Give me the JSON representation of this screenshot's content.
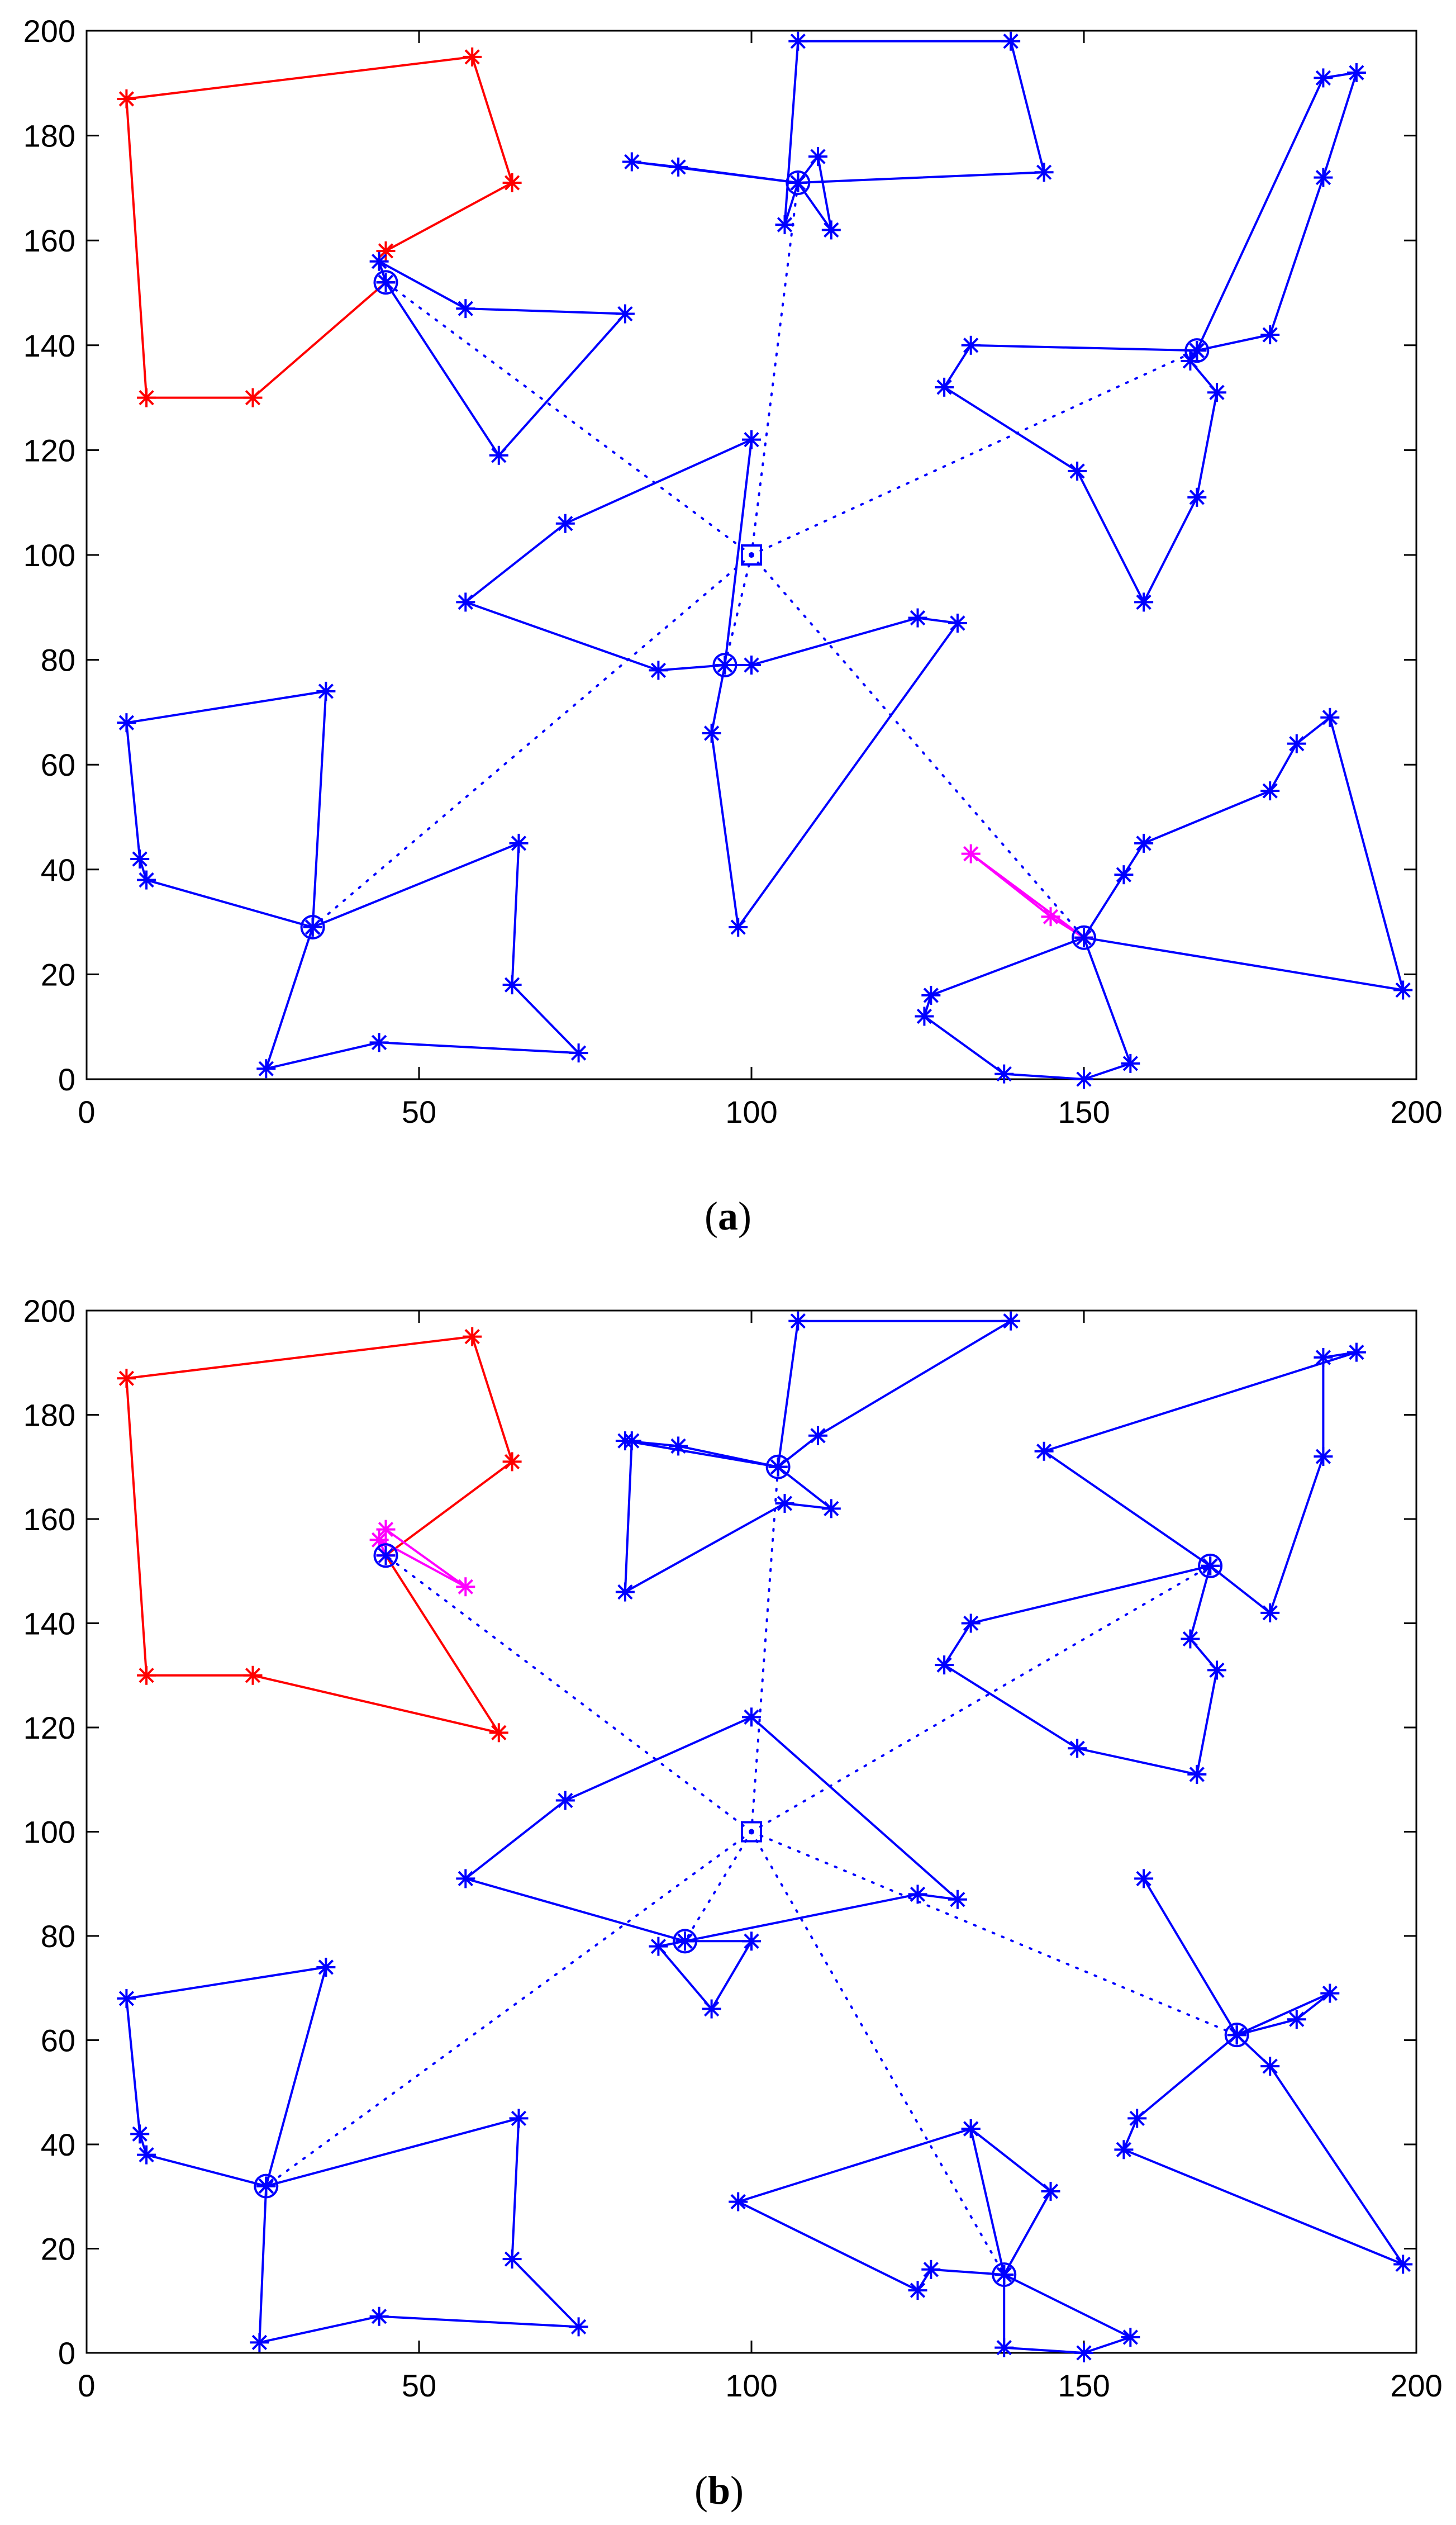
{
  "figure": {
    "panels": [
      {
        "label_open": "(",
        "label_letter": "a",
        "label_close": ")"
      },
      {
        "label_open": "(",
        "label_letter": "b",
        "label_close": ")"
      }
    ]
  },
  "colors": {
    "main_tour": "#0000ff",
    "red_tour": "#ff0000",
    "magenta_tour": "#ff00ff",
    "axes": "#000000",
    "background": "#ffffff"
  },
  "chart_data": [
    {
      "type": "line",
      "panel": "(a)",
      "xlim": [
        0,
        200
      ],
      "ylim": [
        0,
        200
      ],
      "xticks": [
        0,
        50,
        100,
        150,
        200
      ],
      "yticks": [
        0,
        20,
        40,
        60,
        80,
        100,
        120,
        140,
        160,
        180,
        200
      ],
      "xtick_labels": [
        "0",
        "50",
        "100",
        "150",
        "200"
      ],
      "ytick_labels": [
        "0",
        "20",
        "40",
        "60",
        "80",
        "100",
        "120",
        "140",
        "160",
        "180",
        "200"
      ],
      "grid": false,
      "depot": {
        "x": 100,
        "y": 100,
        "marker": "square-dot"
      },
      "centers": [
        [
          45,
          152
        ],
        [
          107,
          171
        ],
        [
          167,
          139
        ],
        [
          96,
          79
        ],
        [
          34,
          29
        ],
        [
          150,
          27
        ]
      ],
      "series": [
        {
          "color": "#ff0000",
          "style": "solid",
          "marker": "star",
          "points": [
            [
              45,
              158
            ],
            [
              64,
              171
            ],
            [
              58,
              195
            ],
            [
              6,
              187
            ],
            [
              9,
              130
            ],
            [
              25,
              130
            ],
            [
              45,
              152
            ]
          ]
        },
        {
          "color": "#0000ff",
          "style": "solid",
          "marker": "star",
          "points": [
            [
              45,
              152
            ],
            [
              44,
              156
            ],
            [
              57,
              147
            ],
            [
              81,
              146
            ],
            [
              62,
              119
            ],
            [
              45,
              152
            ]
          ]
        },
        {
          "color": "#0000ff",
          "style": "solid",
          "marker": "star",
          "points": [
            [
              107,
              171
            ],
            [
              105,
              163
            ],
            [
              107,
              198
            ],
            [
              139,
              198
            ],
            [
              144,
              173
            ],
            [
              107,
              171
            ],
            [
              82,
              175
            ],
            [
              89,
              174
            ],
            [
              107,
              171
            ],
            [
              110,
              176
            ],
            [
              112,
              162
            ],
            [
              107,
              171
            ]
          ]
        },
        {
          "color": "#0000ff",
          "style": "solid",
          "marker": "star",
          "points": [
            [
              167,
              139
            ],
            [
              186,
              191
            ],
            [
              191,
              192
            ],
            [
              186,
              172
            ],
            [
              178,
              142
            ],
            [
              167,
              139
            ],
            [
              133,
              140
            ],
            [
              129,
              132
            ],
            [
              149,
              116
            ],
            [
              159,
              91
            ],
            [
              167,
              111
            ],
            [
              170,
              131
            ],
            [
              166,
              137
            ],
            [
              167,
              139
            ]
          ]
        },
        {
          "color": "#0000ff",
          "style": "solid",
          "marker": "star",
          "points": [
            [
              96,
              79
            ],
            [
              100,
              122
            ],
            [
              72,
              106
            ],
            [
              57,
              91
            ],
            [
              86,
              78
            ],
            [
              96,
              79
            ],
            [
              100,
              79
            ],
            [
              125,
              88
            ],
            [
              131,
              87
            ],
            [
              98,
              29
            ],
            [
              94,
              66
            ],
            [
              96,
              79
            ]
          ]
        },
        {
          "color": "#0000ff",
          "style": "solid",
          "marker": "star",
          "points": [
            [
              34,
              29
            ],
            [
              36,
              74
            ],
            [
              6,
              68
            ],
            [
              8,
              42
            ],
            [
              9,
              38
            ],
            [
              34,
              29
            ],
            [
              65,
              45
            ],
            [
              64,
              18
            ],
            [
              74,
              5
            ],
            [
              44,
              7
            ],
            [
              27,
              2
            ],
            [
              34,
              29
            ]
          ]
        },
        {
          "color": "#0000ff",
          "style": "solid",
          "marker": "star",
          "points": [
            [
              150,
              27
            ],
            [
              156,
              39
            ],
            [
              159,
              45
            ],
            [
              178,
              55
            ],
            [
              182,
              64
            ],
            [
              187,
              69
            ],
            [
              198,
              17
            ],
            [
              150,
              27
            ],
            [
              157,
              3
            ],
            [
              150,
              0
            ],
            [
              138,
              1
            ],
            [
              126,
              12
            ],
            [
              127,
              16
            ],
            [
              150,
              27
            ]
          ]
        },
        {
          "color": "#ff00ff",
          "style": "solid",
          "marker": "star",
          "points": [
            [
              150,
              27
            ],
            [
              145,
              31
            ],
            [
              133,
              43
            ],
            [
              150,
              27
            ]
          ]
        }
      ]
    },
    {
      "type": "line",
      "panel": "(b)",
      "xlim": [
        0,
        200
      ],
      "ylim": [
        0,
        200
      ],
      "xticks": [
        0,
        50,
        100,
        150,
        200
      ],
      "yticks": [
        0,
        20,
        40,
        60,
        80,
        100,
        120,
        140,
        160,
        180,
        200
      ],
      "xtick_labels": [
        "0",
        "50",
        "100",
        "150",
        "200"
      ],
      "ytick_labels": [
        "0",
        "20",
        "40",
        "60",
        "80",
        "100",
        "120",
        "140",
        "160",
        "180",
        "200"
      ],
      "grid": false,
      "depot": {
        "x": 100,
        "y": 100,
        "marker": "square-dot"
      },
      "centers": [
        [
          45,
          153
        ],
        [
          104,
          170
        ],
        [
          169,
          151
        ],
        [
          90,
          79
        ],
        [
          27,
          32
        ],
        [
          173,
          61
        ],
        [
          138,
          15
        ]
      ],
      "series": [
        {
          "color": "#ff0000",
          "style": "solid",
          "marker": "star",
          "points": [
            [
              45,
              153
            ],
            [
              64,
              171
            ],
            [
              58,
              195
            ],
            [
              6,
              187
            ],
            [
              9,
              130
            ],
            [
              25,
              130
            ],
            [
              62,
              119
            ],
            [
              45,
              153
            ]
          ]
        },
        {
          "color": "#ff00ff",
          "style": "solid",
          "marker": "star",
          "points": [
            [
              45,
              153
            ],
            [
              45,
              158
            ],
            [
              57,
              147
            ],
            [
              44,
              156
            ],
            [
              45,
              153
            ]
          ]
        },
        {
          "color": "#0000ff",
          "style": "solid",
          "marker": "star",
          "points": [
            [
              104,
              170
            ],
            [
              107,
              198
            ],
            [
              139,
              198
            ],
            [
              110,
              176
            ],
            [
              104,
              170
            ],
            [
              81,
              175
            ],
            [
              89,
              174
            ],
            [
              104,
              170
            ],
            [
              112,
              162
            ],
            [
              105,
              163
            ],
            [
              81,
              146
            ],
            [
              82,
              175
            ]
          ]
        },
        {
          "color": "#0000ff",
          "style": "solid",
          "marker": "star",
          "points": [
            [
              169,
              151
            ],
            [
              144,
              173
            ],
            [
              191,
              192
            ],
            [
              186,
              191
            ],
            [
              186,
              172
            ],
            [
              178,
              142
            ],
            [
              169,
              151
            ],
            [
              133,
              140
            ],
            [
              129,
              132
            ],
            [
              149,
              116
            ],
            [
              167,
              111
            ],
            [
              170,
              131
            ],
            [
              166,
              137
            ],
            [
              169,
              151
            ]
          ]
        },
        {
          "color": "#0000ff",
          "style": "solid",
          "marker": "star",
          "points": [
            [
              90,
              79
            ],
            [
              57,
              91
            ],
            [
              72,
              106
            ],
            [
              100,
              122
            ],
            [
              131,
              87
            ],
            [
              125,
              88
            ],
            [
              90,
              79
            ],
            [
              86,
              78
            ],
            [
              94,
              66
            ],
            [
              100,
              79
            ],
            [
              90,
              79
            ]
          ]
        },
        {
          "color": "#0000ff",
          "style": "solid",
          "marker": "star",
          "points": [
            [
              27,
              32
            ],
            [
              36,
              74
            ],
            [
              6,
              68
            ],
            [
              8,
              42
            ],
            [
              9,
              38
            ],
            [
              27,
              32
            ],
            [
              65,
              45
            ],
            [
              64,
              18
            ],
            [
              74,
              5
            ],
            [
              44,
              7
            ],
            [
              26,
              2
            ],
            [
              27,
              32
            ]
          ]
        },
        {
          "color": "#0000ff",
          "style": "solid",
          "marker": "star",
          "points": [
            [
              173,
              61
            ],
            [
              159,
              91
            ],
            [
              173,
              61
            ],
            [
              187,
              69
            ],
            [
              182,
              64
            ],
            [
              173,
              61
            ],
            [
              178,
              55
            ],
            [
              198,
              17
            ],
            [
              156,
              39
            ],
            [
              158,
              45
            ],
            [
              173,
              61
            ]
          ]
        },
        {
          "color": "#0000ff",
          "style": "solid",
          "marker": "star",
          "points": [
            [
              138,
              15
            ],
            [
              133,
              43
            ],
            [
              145,
              31
            ],
            [
              138,
              15
            ],
            [
              157,
              3
            ],
            [
              150,
              0
            ],
            [
              138,
              1
            ],
            [
              138,
              15
            ],
            [
              127,
              16
            ],
            [
              125,
              12
            ],
            [
              98,
              29
            ],
            [
              133,
              43
            ]
          ]
        }
      ]
    }
  ]
}
